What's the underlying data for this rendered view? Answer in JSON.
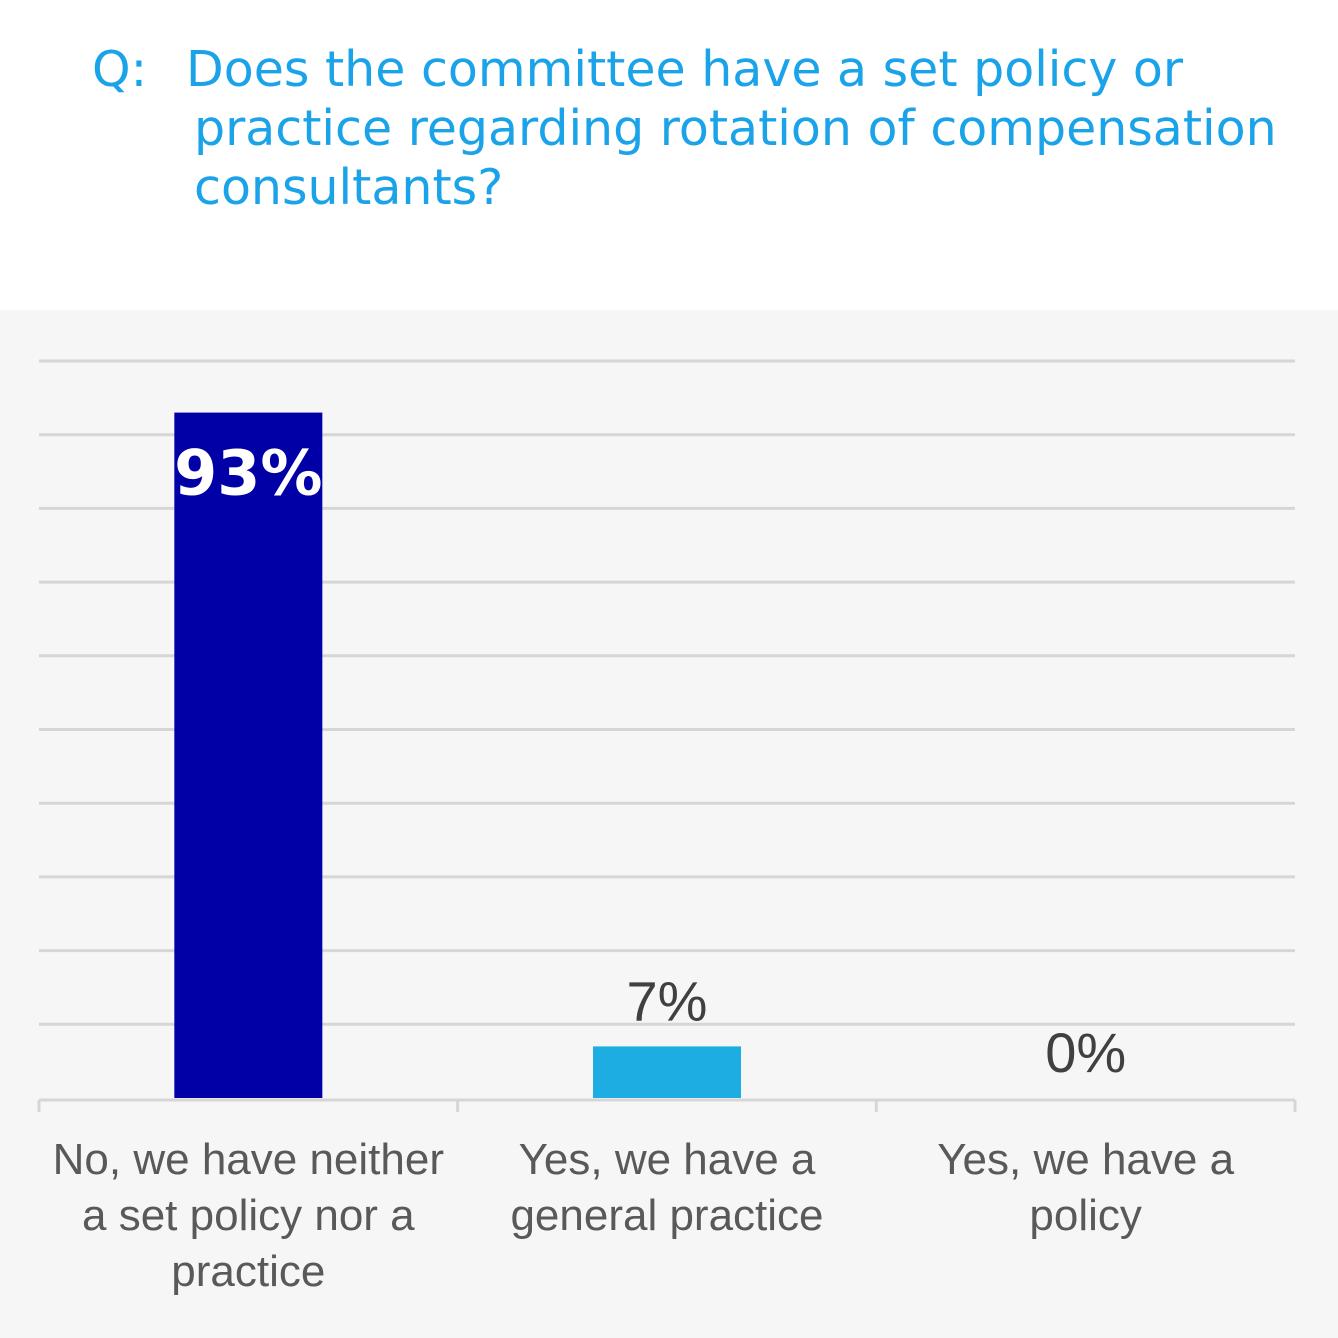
{
  "question": {
    "prefix": "Q:",
    "text": "Does the committee have a set policy or practice regarding rotation of compensation consultants?"
  },
  "chart_data": {
    "type": "bar",
    "categories": [
      "No, we have neither a set policy nor a practice",
      "Yes, we have a general practice",
      "Yes, we have a policy"
    ],
    "category_lines": [
      [
        "No, we have neither",
        "a set policy nor a",
        "practice"
      ],
      [
        "Yes, we have a",
        "general practice"
      ],
      [
        "Yes, we have a",
        "policy"
      ]
    ],
    "values": [
      93,
      7,
      0
    ],
    "value_labels": [
      "93%",
      "7%",
      "0%"
    ],
    "colors": [
      "#0000a6",
      "#1eade2",
      "#1eade2"
    ],
    "ylim": [
      0,
      100
    ],
    "grid": true,
    "unit": "%"
  }
}
